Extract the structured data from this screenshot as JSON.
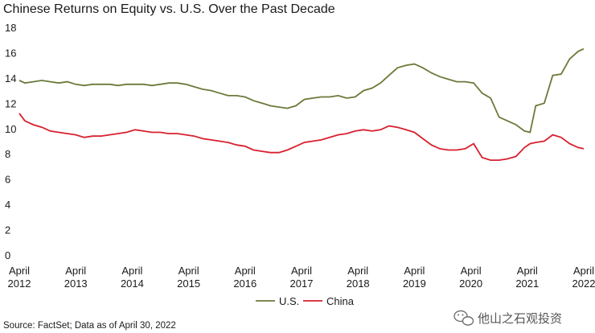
{
  "chart_data": {
    "type": "line",
    "title": "Chinese Returns on Equity vs. U.S. Over the Past Decade",
    "xlabel": "",
    "ylabel": "",
    "ylim": [
      0,
      18
    ],
    "yticks": [
      0,
      2,
      4,
      6,
      8,
      10,
      12,
      14,
      16,
      18
    ],
    "xlim": [
      2012.0,
      2022.0
    ],
    "x_ticks": [
      {
        "x": 2012,
        "month": "April",
        "year": "2012"
      },
      {
        "x": 2013,
        "month": "April",
        "year": "2013"
      },
      {
        "x": 2014,
        "month": "April",
        "year": "2014"
      },
      {
        "x": 2015,
        "month": "April",
        "year": "2015"
      },
      {
        "x": 2016,
        "month": "April",
        "year": "2016"
      },
      {
        "x": 2017,
        "month": "April",
        "year": "2017"
      },
      {
        "x": 2018,
        "month": "April",
        "year": "2018"
      },
      {
        "x": 2019,
        "month": "April",
        "year": "2019"
      },
      {
        "x": 2020,
        "month": "April",
        "year": "2020"
      },
      {
        "x": 2021,
        "month": "April",
        "year": "2021"
      },
      {
        "x": 2022,
        "month": "April",
        "year": "2022"
      }
    ],
    "legend_position": "bottom-center",
    "series": [
      {
        "name": "U.S.",
        "color": "#6b7a3a",
        "x": [
          2012.0,
          2012.1,
          2012.25,
          2012.4,
          2012.55,
          2012.7,
          2012.85,
          2013.0,
          2013.15,
          2013.3,
          2013.45,
          2013.6,
          2013.75,
          2013.9,
          2014.05,
          2014.2,
          2014.35,
          2014.5,
          2014.65,
          2014.8,
          2014.95,
          2015.1,
          2015.25,
          2015.4,
          2015.55,
          2015.7,
          2015.85,
          2016.0,
          2016.15,
          2016.3,
          2016.45,
          2016.6,
          2016.75,
          2016.9,
          2017.05,
          2017.2,
          2017.35,
          2017.5,
          2017.65,
          2017.8,
          2017.95,
          2018.1,
          2018.25,
          2018.4,
          2018.55,
          2018.7,
          2018.85,
          2019.0,
          2019.15,
          2019.3,
          2019.45,
          2019.6,
          2019.75,
          2019.9,
          2020.05,
          2020.2,
          2020.35,
          2020.5,
          2020.65,
          2020.8,
          2020.95,
          2021.05,
          2021.15,
          2021.3,
          2021.45,
          2021.6,
          2021.75,
          2021.9,
          2022.0
        ],
        "values": [
          13.8,
          13.6,
          13.7,
          13.8,
          13.7,
          13.6,
          13.7,
          13.5,
          13.4,
          13.5,
          13.5,
          13.5,
          13.4,
          13.5,
          13.5,
          13.5,
          13.4,
          13.5,
          13.6,
          13.6,
          13.5,
          13.3,
          13.1,
          13.0,
          12.8,
          12.6,
          12.6,
          12.5,
          12.2,
          12.0,
          11.8,
          11.7,
          11.6,
          11.8,
          12.3,
          12.4,
          12.5,
          12.5,
          12.6,
          12.4,
          12.5,
          13.0,
          13.2,
          13.6,
          14.2,
          14.8,
          15.0,
          15.1,
          14.8,
          14.4,
          14.1,
          13.9,
          13.7,
          13.7,
          13.6,
          12.8,
          12.4,
          10.9,
          10.6,
          10.3,
          9.8,
          9.7,
          11.8,
          12.0,
          14.2,
          14.3,
          15.5,
          16.1,
          16.3
        ]
      },
      {
        "name": "China",
        "color": "#d8202e",
        "x": [
          2012.0,
          2012.1,
          2012.25,
          2012.4,
          2012.55,
          2012.7,
          2012.85,
          2013.0,
          2013.15,
          2013.3,
          2013.45,
          2013.6,
          2013.75,
          2013.9,
          2014.05,
          2014.2,
          2014.35,
          2014.5,
          2014.65,
          2014.8,
          2014.95,
          2015.1,
          2015.25,
          2015.4,
          2015.55,
          2015.7,
          2015.85,
          2016.0,
          2016.15,
          2016.3,
          2016.45,
          2016.6,
          2016.75,
          2016.9,
          2017.05,
          2017.2,
          2017.35,
          2017.5,
          2017.65,
          2017.8,
          2017.95,
          2018.1,
          2018.25,
          2018.4,
          2018.55,
          2018.7,
          2018.85,
          2019.0,
          2019.15,
          2019.3,
          2019.45,
          2019.6,
          2019.75,
          2019.9,
          2020.05,
          2020.2,
          2020.35,
          2020.5,
          2020.65,
          2020.8,
          2020.95,
          2021.05,
          2021.15,
          2021.3,
          2021.45,
          2021.6,
          2021.75,
          2021.9,
          2022.0
        ],
        "values": [
          11.2,
          10.6,
          10.3,
          10.1,
          9.8,
          9.7,
          9.6,
          9.5,
          9.3,
          9.4,
          9.4,
          9.5,
          9.6,
          9.7,
          9.9,
          9.8,
          9.7,
          9.7,
          9.6,
          9.6,
          9.5,
          9.4,
          9.2,
          9.1,
          9.0,
          8.9,
          8.7,
          8.6,
          8.3,
          8.2,
          8.1,
          8.1,
          8.3,
          8.6,
          8.9,
          9.0,
          9.1,
          9.3,
          9.5,
          9.6,
          9.8,
          9.9,
          9.8,
          9.9,
          10.2,
          10.1,
          9.9,
          9.7,
          9.2,
          8.7,
          8.4,
          8.3,
          8.3,
          8.4,
          8.8,
          7.7,
          7.5,
          7.5,
          7.6,
          7.8,
          8.5,
          8.8,
          8.9,
          9.0,
          9.5,
          9.3,
          8.8,
          8.5,
          8.4
        ]
      }
    ]
  },
  "source": "Source: FactSet; Data as of April 30, 2022",
  "watermark": "他山之石观投资"
}
